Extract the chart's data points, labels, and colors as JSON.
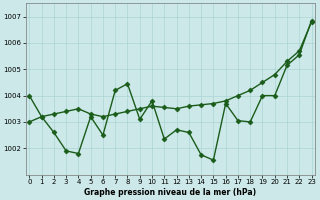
{
  "line1_x": [
    0,
    1,
    2,
    3,
    4,
    5,
    6,
    7,
    8,
    9,
    10,
    11,
    12,
    13,
    14,
    15,
    16,
    17,
    18,
    19,
    20,
    21,
    22,
    23
  ],
  "line1_y": [
    1003.0,
    1003.2,
    1003.3,
    1003.4,
    1003.5,
    1003.3,
    1003.2,
    1003.3,
    1003.4,
    1003.5,
    1003.6,
    1003.55,
    1003.5,
    1003.6,
    1003.65,
    1003.7,
    1003.8,
    1004.0,
    1004.2,
    1004.5,
    1004.8,
    1005.3,
    1005.7,
    1006.8
  ],
  "line2_x": [
    0,
    1,
    2,
    3,
    4,
    5,
    6,
    7,
    8,
    9,
    10,
    11,
    12,
    13,
    14,
    15,
    16,
    17,
    18,
    19,
    20,
    21,
    22,
    23
  ],
  "line2_y": [
    1004.0,
    1003.2,
    1002.6,
    1001.9,
    1001.8,
    1003.2,
    1002.5,
    1004.2,
    1004.45,
    1003.1,
    1003.8,
    1002.35,
    1002.7,
    1002.6,
    1001.75,
    1001.55,
    1003.7,
    1003.05,
    1003.0,
    1004.0,
    1004.0,
    1005.15,
    1005.55,
    1006.85
  ],
  "bg_color": "#cce8e8",
  "grid_color": "#aad4d4",
  "line_color": "#1a5c1a",
  "marker": "D",
  "marker_size": 2.5,
  "line_width": 1.0,
  "title": "Graphe pression niveau de la mer (hPa)",
  "ylim": [
    1001.0,
    1007.5
  ],
  "xlim": [
    -0.3,
    23.3
  ],
  "yticks": [
    1002,
    1003,
    1004,
    1005,
    1006,
    1007
  ],
  "xticks": [
    0,
    1,
    2,
    3,
    4,
    5,
    6,
    7,
    8,
    9,
    10,
    11,
    12,
    13,
    14,
    15,
    16,
    17,
    18,
    19,
    20,
    21,
    22,
    23
  ],
  "tick_labelsize": 5,
  "title_fontsize": 5.5
}
